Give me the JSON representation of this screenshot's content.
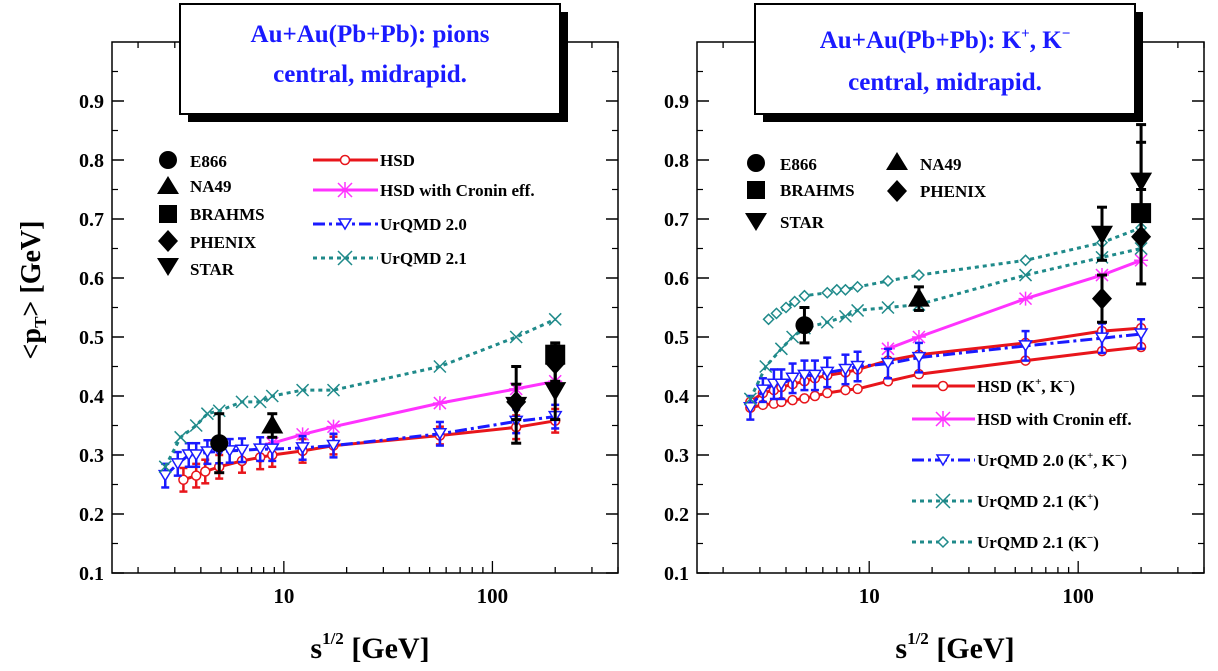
{
  "figure": {
    "ylabel_main": "<p",
    "ylabel_sub": "T",
    "ylabel_rest": "> [GeV]",
    "xlabel_main": "s",
    "xlabel_sup": "1/2",
    "xlabel_rest": " [GeV]"
  },
  "colors": {
    "HSD": "#e8151b",
    "HSD_Cronin": "#ff33ff",
    "UrQMD20": "#1a1aff",
    "UrQMD21": "#1f8a8a",
    "data": "#000000",
    "title": "#1a1aff"
  },
  "chart_data": [
    {
      "type": "line",
      "x_scale": "log",
      "xlim": [
        1.5,
        400
      ],
      "ylim": [
        0.1,
        1.0
      ],
      "y_ticks": [
        "0.1",
        "0.2",
        "0.3",
        "0.4",
        "0.5",
        "0.6",
        "0.7",
        "0.8",
        "0.9"
      ],
      "x_ticks": [
        "10",
        "100"
      ],
      "title_line1": "Au+Au(Pb+Pb):  pions",
      "title_line2": "central, midrapid.",
      "legend_data": [
        "E866",
        "NA49",
        "BRAHMS",
        "PHENIX",
        "STAR"
      ],
      "legend_model": [
        "HSD",
        "HSD with Cronin eff.",
        "UrQMD 2.0",
        "UrQMD 2.1"
      ],
      "experiments": [
        {
          "name": "E866",
          "marker": "circle",
          "points": [
            {
              "x": 4.9,
              "y": 0.32,
              "err": 0.05
            }
          ]
        },
        {
          "name": "NA49",
          "marker": "triangle-up",
          "points": [
            {
              "x": 8.8,
              "y": 0.35,
              "err": 0.02
            }
          ]
        },
        {
          "name": "BRAHMS",
          "marker": "square",
          "points": [
            {
              "x": 200,
              "y": 0.47,
              "err": 0.02
            }
          ]
        },
        {
          "name": "PHENIX",
          "marker": "diamond",
          "points": [
            {
              "x": 130,
              "y": 0.39,
              "err": 0.03
            },
            {
              "x": 200,
              "y": 0.455,
              "err": 0.03
            }
          ]
        },
        {
          "name": "STAR",
          "marker": "triangle-down",
          "points": [
            {
              "x": 130,
              "y": 0.385,
              "err": 0.065
            },
            {
              "x": 200,
              "y": 0.41,
              "err": 0.05
            }
          ]
        }
      ],
      "series": [
        {
          "name": "HSD",
          "style": "solid",
          "marker": "circle-open",
          "color_key": "HSD",
          "x": [
            3.3,
            3.8,
            4.2,
            4.9,
            6.3,
            7.7,
            8.8,
            12.3,
            17.3,
            56,
            130,
            200
          ],
          "y": [
            0.258,
            0.265,
            0.272,
            0.28,
            0.29,
            0.296,
            0.3,
            0.307,
            0.316,
            0.333,
            0.347,
            0.358
          ],
          "err": [
            0.02,
            0.02,
            0.02,
            0.02,
            0.02,
            0.02,
            0.02,
            0.02,
            0.015,
            0.015,
            0.02,
            0.02
          ]
        },
        {
          "name": "HSD with Cronin eff.",
          "style": "solid",
          "marker": "star",
          "color_key": "HSD_Cronin",
          "x": [
            8.8,
            12.3,
            17.3,
            56,
            130,
            200
          ],
          "y": [
            0.32,
            0.335,
            0.348,
            0.388,
            0.412,
            0.425
          ]
        },
        {
          "name": "UrQMD 2.0",
          "style": "dashdot",
          "marker": "triangle-down-open",
          "color_key": "UrQMD20",
          "x": [
            2.7,
            3.1,
            3.5,
            3.8,
            4.3,
            4.9,
            5.5,
            6.3,
            7.7,
            8.8,
            12.3,
            17.3,
            56,
            130,
            200
          ],
          "y": [
            0.265,
            0.285,
            0.3,
            0.3,
            0.305,
            0.306,
            0.307,
            0.308,
            0.31,
            0.31,
            0.312,
            0.316,
            0.336,
            0.357,
            0.365
          ],
          "err": [
            0.02,
            0.02,
            0.02,
            0.02,
            0.02,
            0.02,
            0.02,
            0.02,
            0.02,
            0.02,
            0.02,
            0.02,
            0.02,
            0.02,
            0.02
          ]
        },
        {
          "name": "UrQMD 2.1",
          "style": "dotted",
          "marker": "x",
          "color_key": "UrQMD21",
          "x": [
            2.7,
            3.2,
            3.8,
            4.3,
            4.9,
            6.3,
            7.7,
            8.8,
            12.3,
            17.3,
            56,
            130,
            200
          ],
          "y": [
            0.28,
            0.33,
            0.35,
            0.37,
            0.375,
            0.39,
            0.39,
            0.4,
            0.41,
            0.41,
            0.45,
            0.5,
            0.53
          ]
        }
      ]
    },
    {
      "type": "line",
      "x_scale": "log",
      "xlim": [
        1.5,
        400
      ],
      "ylim": [
        0.1,
        1.0
      ],
      "y_ticks": [
        "0.1",
        "0.2",
        "0.3",
        "0.4",
        "0.5",
        "0.6",
        "0.7",
        "0.8",
        "0.9"
      ],
      "x_ticks": [
        "10",
        "100"
      ],
      "title_line1": "Au+Au(Pb+Pb):  K",
      "title_plus": "+",
      "title_comma": ", K",
      "title_minus": "−",
      "title_line2": "central, midrapid.",
      "legend_data": [
        "E866",
        "NA49",
        "BRAHMS",
        "PHENIX",
        "STAR"
      ],
      "legend_model": [
        "HSD (K+, K−)",
        "HSD with Cronin eff.",
        "UrQMD 2.0 (K+, K−)",
        "UrQMD 2.1 (K+)",
        "UrQMD 2.1 (K−)"
      ],
      "experiments": [
        {
          "name": "E866",
          "marker": "circle",
          "points": [
            {
              "x": 4.9,
              "y": 0.52,
              "err": 0.03
            }
          ]
        },
        {
          "name": "NA49",
          "marker": "triangle-up",
          "points": [
            {
              "x": 17.3,
              "y": 0.565,
              "err": 0.02
            }
          ]
        },
        {
          "name": "BRAHMS",
          "marker": "square",
          "points": [
            {
              "x": 200,
              "y": 0.71,
              "err": 0.12
            }
          ]
        },
        {
          "name": "PHENIX",
          "marker": "diamond",
          "points": [
            {
              "x": 130,
              "y": 0.565,
              "err": 0.04
            },
            {
              "x": 200,
              "y": 0.67,
              "err": 0.08
            }
          ]
        },
        {
          "name": "STAR",
          "marker": "triangle-down",
          "points": [
            {
              "x": 130,
              "y": 0.675,
              "err": 0.045
            },
            {
              "x": 200,
              "y": 0.765,
              "err": 0.095
            }
          ]
        }
      ],
      "series": [
        {
          "name": "HSD (K+)",
          "style": "solid",
          "marker": "circle-open",
          "color_key": "HSD",
          "x": [
            2.7,
            3.1,
            3.5,
            3.8,
            4.3,
            4.9,
            5.5,
            6.3,
            7.7,
            8.8,
            12.3,
            17.3,
            56,
            130,
            200
          ],
          "y": [
            0.39,
            0.405,
            0.41,
            0.415,
            0.42,
            0.425,
            0.43,
            0.435,
            0.44,
            0.445,
            0.46,
            0.47,
            0.49,
            0.51,
            0.515
          ]
        },
        {
          "name": "HSD (K−)",
          "style": "solid",
          "marker": "circle-open",
          "color_key": "HSD",
          "x": [
            2.7,
            3.1,
            3.5,
            3.8,
            4.3,
            4.9,
            5.5,
            6.3,
            7.7,
            8.8,
            12.3,
            17.3,
            56,
            130,
            200
          ],
          "y": [
            0.38,
            0.385,
            0.387,
            0.39,
            0.393,
            0.396,
            0.4,
            0.405,
            0.41,
            0.412,
            0.425,
            0.437,
            0.46,
            0.476,
            0.483
          ]
        },
        {
          "name": "HSD with Cronin eff.",
          "style": "solid",
          "marker": "star",
          "color_key": "HSD_Cronin",
          "x": [
            12.3,
            17.3,
            56,
            130,
            200
          ],
          "y": [
            0.48,
            0.5,
            0.565,
            0.605,
            0.63
          ]
        },
        {
          "name": "UrQMD 2.0 (K+, K−)",
          "style": "dashdot",
          "marker": "triangle-down-open",
          "color_key": "UrQMD20",
          "x": [
            2.7,
            3.1,
            3.5,
            3.8,
            4.3,
            4.9,
            5.5,
            6.3,
            7.7,
            8.8,
            12.3,
            17.3,
            56,
            130,
            200
          ],
          "y": [
            0.38,
            0.41,
            0.42,
            0.42,
            0.43,
            0.435,
            0.435,
            0.44,
            0.445,
            0.45,
            0.455,
            0.465,
            0.485,
            0.498,
            0.505
          ],
          "err": [
            0.02,
            0.02,
            0.025,
            0.025,
            0.025,
            0.025,
            0.025,
            0.025,
            0.025,
            0.025,
            0.025,
            0.025,
            0.025,
            0.025,
            0.025
          ]
        },
        {
          "name": "UrQMD 2.1 (K+)",
          "style": "dotted",
          "marker": "x",
          "color_key": "UrQMD21",
          "x": [
            2.7,
            3.2,
            3.8,
            4.3,
            4.9,
            6.3,
            7.7,
            8.8,
            12.3,
            17.3,
            56,
            130,
            200
          ],
          "y": [
            0.395,
            0.45,
            0.48,
            0.5,
            0.515,
            0.525,
            0.535,
            0.545,
            0.55,
            0.555,
            0.605,
            0.635,
            0.65
          ]
        },
        {
          "name": "UrQMD 2.1 (K−)",
          "style": "dotted",
          "marker": "diamond-open",
          "color_key": "UrQMD21",
          "x": [
            3.3,
            3.6,
            4.0,
            4.4,
            4.9,
            6.3,
            7.0,
            7.7,
            8.8,
            12.3,
            17.3,
            56,
            130,
            200
          ],
          "y": [
            0.53,
            0.54,
            0.55,
            0.56,
            0.57,
            0.575,
            0.58,
            0.58,
            0.585,
            0.595,
            0.605,
            0.63,
            0.66,
            0.685
          ]
        }
      ]
    }
  ]
}
